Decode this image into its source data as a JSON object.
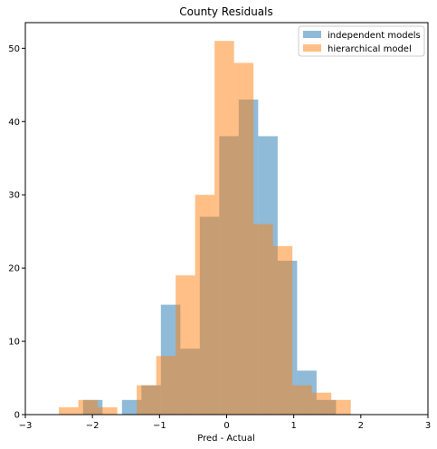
{
  "chart_data": {
    "type": "bar",
    "title": "County Residuals",
    "xlabel": "Pred - Actual",
    "ylabel": "",
    "xlim": [
      -3,
      3
    ],
    "ylim": [
      0,
      53.5
    ],
    "xticks": [
      "-3",
      "-2",
      "-1",
      "0",
      "1",
      "2",
      "3"
    ],
    "yticks": [
      "0",
      "10",
      "20",
      "30",
      "40",
      "50"
    ],
    "grid": false,
    "legend_position": "top-right",
    "series": [
      {
        "name": "independent models",
        "color": "#1f77b4",
        "opacity": 0.5,
        "bins": [
          [
            -2.14,
            -1.85,
            2
          ],
          [
            -1.56,
            -1.27,
            2
          ],
          [
            -1.27,
            -0.98,
            4
          ],
          [
            -0.98,
            -0.69,
            15
          ],
          [
            -0.69,
            -0.4,
            9
          ],
          [
            -0.4,
            -0.11,
            27
          ],
          [
            -0.11,
            0.18,
            38
          ],
          [
            0.18,
            0.47,
            43
          ],
          [
            0.47,
            0.76,
            38
          ],
          [
            0.76,
            1.05,
            21
          ],
          [
            1.05,
            1.34,
            6
          ],
          [
            1.34,
            1.63,
            2
          ]
        ]
      },
      {
        "name": "hierarchical model",
        "color": "#ff7f0e",
        "opacity": 0.5,
        "bins": [
          [
            -2.5,
            -2.21,
            1
          ],
          [
            -2.21,
            -1.92,
            2
          ],
          [
            -1.92,
            -1.63,
            1
          ],
          [
            -1.63,
            -1.34,
            0
          ],
          [
            -1.34,
            -1.05,
            4
          ],
          [
            -1.05,
            -0.76,
            8
          ],
          [
            -0.76,
            -0.47,
            19
          ],
          [
            -0.47,
            -0.18,
            30
          ],
          [
            -0.18,
            0.11,
            51
          ],
          [
            0.11,
            0.4,
            48
          ],
          [
            0.4,
            0.69,
            26
          ],
          [
            0.69,
            0.98,
            23
          ],
          [
            0.98,
            1.27,
            4
          ],
          [
            1.27,
            1.56,
            3
          ],
          [
            1.56,
            1.85,
            2
          ]
        ]
      }
    ]
  }
}
